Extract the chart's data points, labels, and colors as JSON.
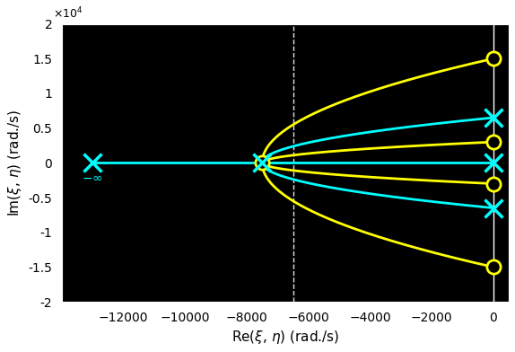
{
  "background_color": "#000000",
  "figure_facecolor": "#ffffff",
  "figure_size": [
    5.74,
    3.92
  ],
  "dpi": 100,
  "xlim": [
    -14000,
    500
  ],
  "ylim": [
    -20000,
    20000
  ],
  "xlabel": "Re($\\xi$, $\\eta$) (rad./s)",
  "ylabel": "Im($\\xi$, $\\eta$) (rad./s)",
  "xticks": [
    -12000,
    -10000,
    -8000,
    -6000,
    -4000,
    -2000,
    0
  ],
  "ytick_vals": [
    -2,
    -1.5,
    -1,
    -0.5,
    0,
    0.5,
    1,
    1.5,
    2
  ],
  "dashed_vline_x": -6500,
  "yellow_color": "#ffff00",
  "cyan_color": "#00ffff",
  "yellow_lw": 2.0,
  "cyan_lw": 2.0,
  "marker_size": 11,
  "pole_x": -7500,
  "far_pole_x": -13000,
  "yellow_zeros_im": [
    15000,
    3000,
    -3000,
    -15000
  ],
  "cyan_zeros_im": [
    6500,
    0,
    -6500
  ],
  "minus_inf_label": "$-\\infty$",
  "n_points": 800,
  "tick_fontsize": 10,
  "label_fontsize": 11
}
